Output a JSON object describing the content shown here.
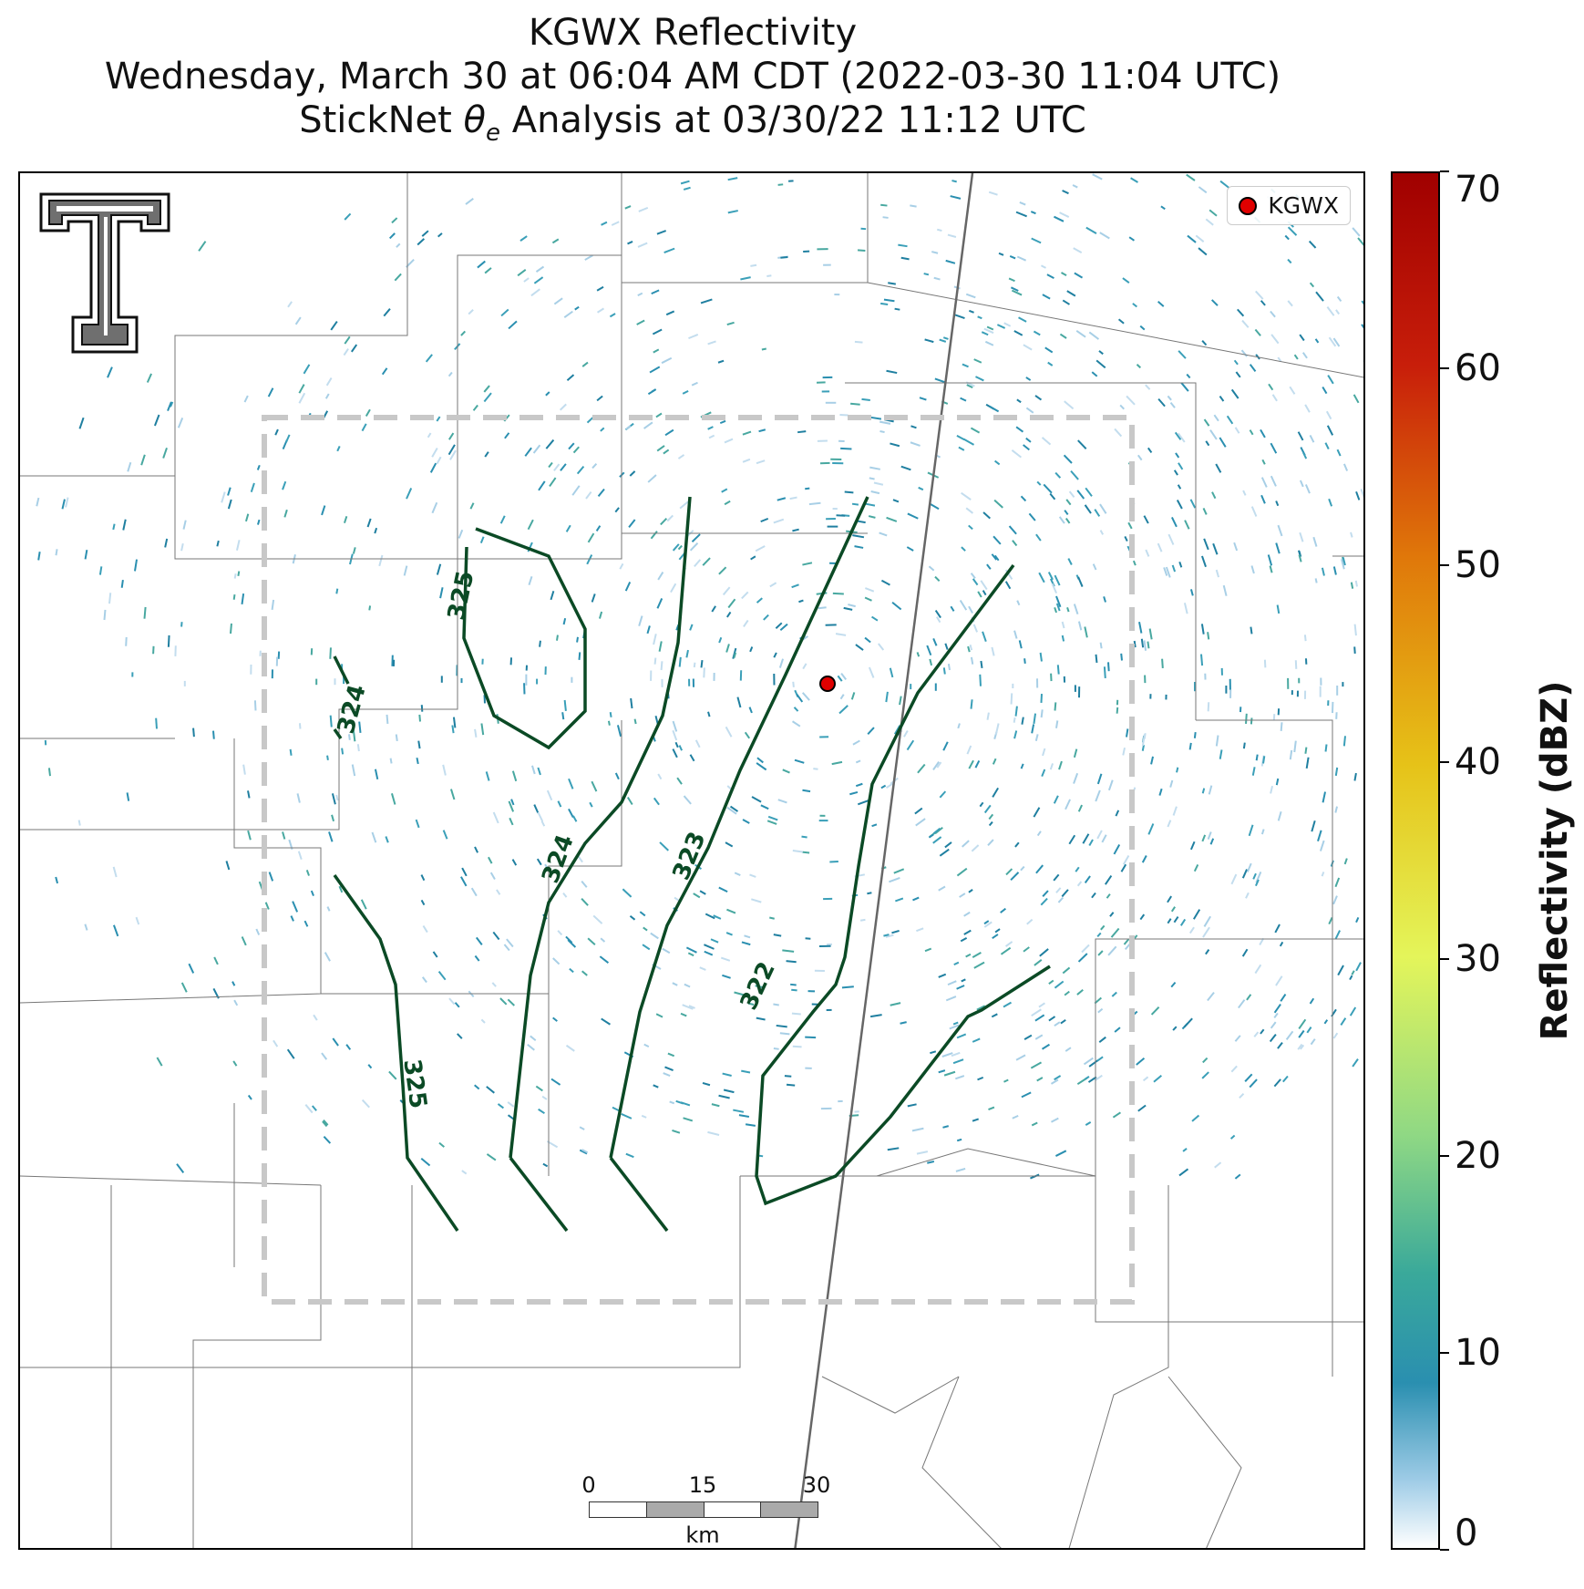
{
  "title": {
    "line1": "KGWX Reflectivity",
    "line2": "Wednesday, March 30 at 06:04 AM CDT (2022-03-30 11:04 UTC)",
    "line3_prefix": "StickNet ",
    "line3_symbol": "θ",
    "line3_subscript": "e",
    "line3_suffix": " Analysis at 03/30/22 11:12 UTC"
  },
  "legend": {
    "label": "KGWX",
    "marker_color": "#e00000"
  },
  "radar_site": {
    "name": "KGWX"
  },
  "contours": {
    "color": "#0b4a25",
    "labels": [
      "325",
      "324",
      "324",
      "323",
      "322",
      "325"
    ]
  },
  "scalebar": {
    "ticks": [
      "0",
      "15",
      "30"
    ],
    "unit": "km"
  },
  "colorbar": {
    "label": "Reflectivity (dBZ)",
    "ticks": [
      "0",
      "10",
      "20",
      "30",
      "40",
      "50",
      "60",
      "70"
    ],
    "min": 0,
    "max": 70
  },
  "colors": {
    "analysis_box": "#c8c8c8",
    "reflectivity_low": "#2a8fb0",
    "reflectivity_faint": "#a8cfe6"
  },
  "logo_icon": "texas-tech-double-t-logo"
}
